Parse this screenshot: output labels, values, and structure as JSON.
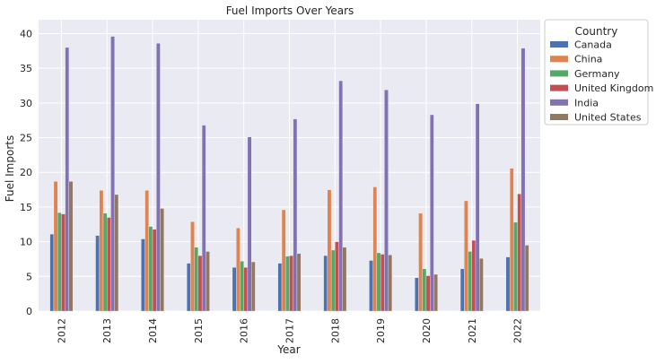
{
  "chart_data": {
    "type": "bar",
    "title": "Fuel Imports Over Years",
    "xlabel": "Year",
    "ylabel": "Fuel Imports",
    "ylim": [
      0,
      42
    ],
    "yticks": [
      0,
      5,
      10,
      15,
      20,
      25,
      30,
      35,
      40
    ],
    "grid": true,
    "legend_title": "Country",
    "legend_position": "outside-top-right",
    "categories": [
      "2012",
      "2013",
      "2014",
      "2015",
      "2016",
      "2017",
      "2018",
      "2019",
      "2020",
      "2021",
      "2022"
    ],
    "series": [
      {
        "name": "Canada",
        "color": "#4c72b0",
        "values": [
          11.1,
          10.9,
          10.4,
          6.9,
          6.3,
          6.9,
          8.0,
          7.3,
          4.8,
          6.1,
          7.8
        ]
      },
      {
        "name": "China",
        "color": "#dd8452",
        "values": [
          18.7,
          17.4,
          17.4,
          12.9,
          12.0,
          14.6,
          17.5,
          17.9,
          14.1,
          15.9,
          20.6
        ]
      },
      {
        "name": "Germany",
        "color": "#55a868",
        "values": [
          14.2,
          14.1,
          12.2,
          9.2,
          7.2,
          7.9,
          8.8,
          8.4,
          6.1,
          8.6,
          12.8
        ]
      },
      {
        "name": "United Kingdom",
        "color": "#c44e52",
        "values": [
          14.0,
          13.5,
          11.8,
          8.0,
          6.3,
          8.0,
          10.0,
          8.2,
          5.1,
          10.2,
          16.9
        ]
      },
      {
        "name": "India",
        "color": "#8172b3",
        "values": [
          38.0,
          39.6,
          38.6,
          26.8,
          25.1,
          27.7,
          33.2,
          31.9,
          28.3,
          29.9,
          37.9
        ]
      },
      {
        "name": "United States",
        "color": "#937860",
        "values": [
          18.7,
          16.8,
          14.8,
          8.6,
          7.1,
          8.3,
          9.2,
          8.1,
          5.3,
          7.6,
          9.5
        ]
      }
    ]
  }
}
